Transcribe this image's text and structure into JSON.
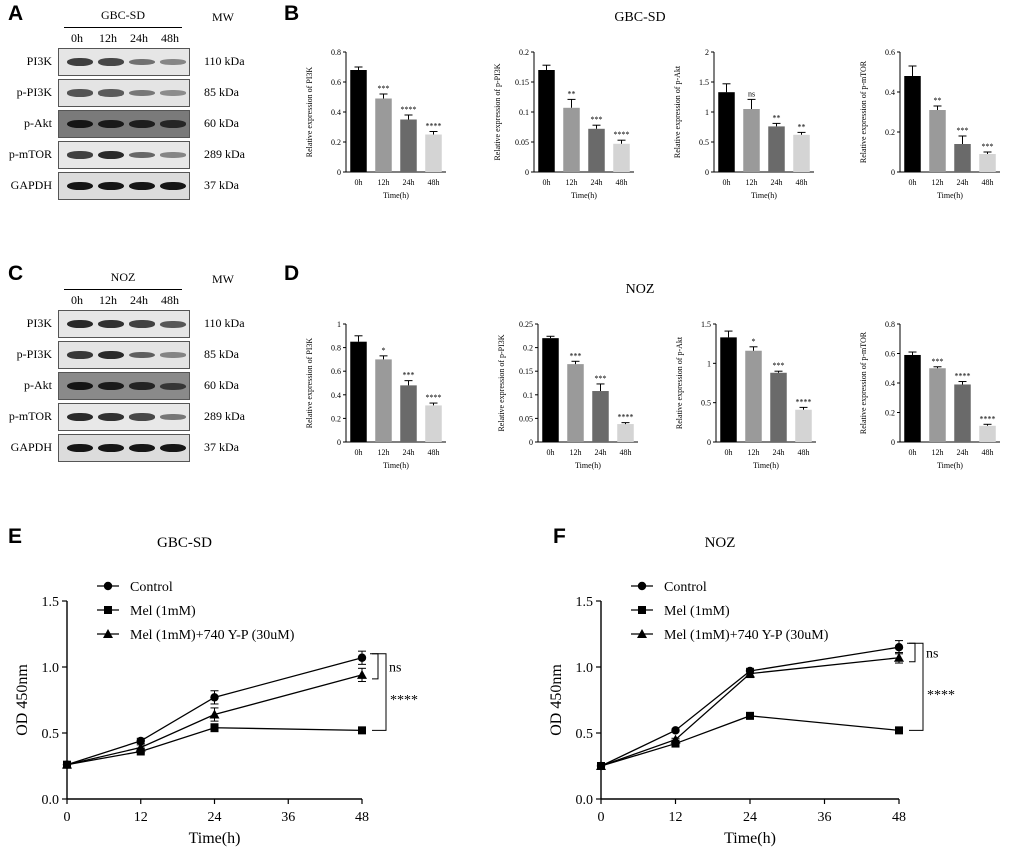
{
  "panel_labels": {
    "A": "A",
    "B": "B",
    "C": "C",
    "D": "D",
    "E": "E",
    "F": "F"
  },
  "western": [
    {
      "panel": "A",
      "cell_line": "GBC-SD",
      "mw_header": "MW",
      "times": [
        "0h",
        "12h",
        "24h",
        "48h"
      ],
      "rows": [
        {
          "protein": "PI3K",
          "mw": "110 kDa",
          "bg": "#e6e6e6",
          "band": "#2a2a2a",
          "intens": [
            0.85,
            0.8,
            0.5,
            0.35
          ]
        },
        {
          "protein": "p-PI3K",
          "mw": "85 kDa",
          "bg": "#e4e4e4",
          "band": "#2a2a2a",
          "intens": [
            0.7,
            0.65,
            0.45,
            0.3
          ]
        },
        {
          "protein": "p-Akt",
          "mw": "60 kDa",
          "bg": "#7a7a7a",
          "band": "#111111",
          "intens": [
            0.95,
            0.9,
            0.85,
            0.75
          ]
        },
        {
          "protein": "p-mTOR",
          "mw": "289 kDa",
          "bg": "#e8e8e8",
          "band": "#1a1a1a",
          "intens": [
            0.75,
            0.9,
            0.5,
            0.3
          ]
        },
        {
          "protein": "GAPDH",
          "mw": "37 kDa",
          "bg": "#dcdcdc",
          "band": "#0d0d0d",
          "intens": [
            0.95,
            0.95,
            0.95,
            0.95
          ]
        }
      ]
    },
    {
      "panel": "C",
      "cell_line": "NOZ",
      "mw_header": "MW",
      "times": [
        "0h",
        "12h",
        "24h",
        "48h"
      ],
      "rows": [
        {
          "protein": "PI3K",
          "mw": "110 kDa",
          "bg": "#e6e6e6",
          "band": "#1a1a1a",
          "intens": [
            0.9,
            0.85,
            0.75,
            0.6
          ]
        },
        {
          "protein": "p-PI3K",
          "mw": "85 kDa",
          "bg": "#e4e4e4",
          "band": "#1a1a1a",
          "intens": [
            0.8,
            0.9,
            0.55,
            0.3
          ]
        },
        {
          "protein": "p-Akt",
          "mw": "60 kDa",
          "bg": "#8a8a8a",
          "band": "#111111",
          "intens": [
            0.95,
            0.9,
            0.8,
            0.6
          ]
        },
        {
          "protein": "p-mTOR",
          "mw": "289 kDa",
          "bg": "#e8e8e8",
          "band": "#1a1a1a",
          "intens": [
            0.9,
            0.85,
            0.7,
            0.4
          ]
        },
        {
          "protein": "GAPDH",
          "mw": "37 kDa",
          "bg": "#dcdcdc",
          "band": "#0d0d0d",
          "intens": [
            0.95,
            0.95,
            0.95,
            0.95
          ]
        }
      ]
    }
  ],
  "bar_group_titles": {
    "B": "GBC-SD",
    "D": "NOZ"
  },
  "bar_colors": [
    "#000000",
    "#9a9a9a",
    "#6a6a6a",
    "#d4d4d4"
  ],
  "chart_data": [
    {
      "id": "B1",
      "panel": "B",
      "type": "bar",
      "categories": [
        "0h",
        "12h",
        "24h",
        "48h"
      ],
      "values": [
        0.68,
        0.49,
        0.35,
        0.25
      ],
      "errors": [
        0.02,
        0.03,
        0.03,
        0.02
      ],
      "sig": [
        "",
        "***",
        "****",
        "****"
      ],
      "ylim": [
        0,
        0.8
      ],
      "ticks": [
        0,
        0.2,
        0.4,
        0.6,
        0.8
      ],
      "ylabel": "Relative expression of PI3K",
      "xlabel": "Time(h)"
    },
    {
      "id": "B2",
      "panel": "B",
      "type": "bar",
      "categories": [
        "0h",
        "12h",
        "24h",
        "48h"
      ],
      "values": [
        0.17,
        0.107,
        0.072,
        0.047
      ],
      "errors": [
        0.008,
        0.014,
        0.006,
        0.006
      ],
      "sig": [
        "",
        "**",
        "***",
        "****"
      ],
      "ylim": [
        0,
        0.2
      ],
      "ticks": [
        0,
        0.05,
        0.1,
        0.15,
        0.2
      ],
      "ylabel": "Relative expression of p-PI3K",
      "xlabel": "Time(h)"
    },
    {
      "id": "B3",
      "panel": "B",
      "type": "bar",
      "categories": [
        "0h",
        "12h",
        "24h",
        "48h"
      ],
      "values": [
        1.33,
        1.05,
        0.76,
        0.62
      ],
      "errors": [
        0.14,
        0.16,
        0.05,
        0.04
      ],
      "sig": [
        "",
        "ns",
        "**",
        "**"
      ],
      "ylim": [
        0,
        2.0
      ],
      "ticks": [
        0,
        0.5,
        1.0,
        1.5,
        2.0
      ],
      "ylabel": "Relative expression of p-Akt",
      "xlabel": "Time(h)"
    },
    {
      "id": "B4",
      "panel": "B",
      "type": "bar",
      "categories": [
        "0h",
        "12h",
        "24h",
        "48h"
      ],
      "values": [
        0.48,
        0.31,
        0.14,
        0.09
      ],
      "errors": [
        0.05,
        0.02,
        0.04,
        0.01
      ],
      "sig": [
        "",
        "**",
        "***",
        "***"
      ],
      "ylim": [
        0,
        0.6
      ],
      "ticks": [
        0,
        0.2,
        0.4,
        0.6
      ],
      "ylabel": "Relative expression of p-mTOR",
      "xlabel": "Time(h)"
    },
    {
      "id": "D1",
      "panel": "D",
      "type": "bar",
      "categories": [
        "0h",
        "12h",
        "24h",
        "48h"
      ],
      "values": [
        0.85,
        0.7,
        0.48,
        0.31
      ],
      "errors": [
        0.05,
        0.03,
        0.04,
        0.02
      ],
      "sig": [
        "",
        "*",
        "***",
        "****"
      ],
      "ylim": [
        0,
        1.0
      ],
      "ticks": [
        0,
        0.2,
        0.4,
        0.6,
        0.8,
        1.0
      ],
      "ylabel": "Relative expression of PI3K",
      "xlabel": "Time(h)"
    },
    {
      "id": "D2",
      "panel": "D",
      "type": "bar",
      "categories": [
        "0h",
        "12h",
        "24h",
        "48h"
      ],
      "values": [
        0.22,
        0.165,
        0.108,
        0.038
      ],
      "errors": [
        0.004,
        0.006,
        0.015,
        0.003
      ],
      "sig": [
        "",
        "***",
        "***",
        "****"
      ],
      "ylim": [
        0,
        0.25
      ],
      "ticks": [
        0,
        0.05,
        0.1,
        0.15,
        0.2,
        0.25
      ],
      "ylabel": "Relative expression of p-PI3K",
      "xlabel": "Time(h)"
    },
    {
      "id": "D3",
      "panel": "D",
      "type": "bar",
      "categories": [
        "0h",
        "12h",
        "24h",
        "48h"
      ],
      "values": [
        1.33,
        1.16,
        0.88,
        0.41
      ],
      "errors": [
        0.08,
        0.05,
        0.02,
        0.03
      ],
      "sig": [
        "",
        "*",
        "***",
        "****"
      ],
      "ylim": [
        0,
        1.5
      ],
      "ticks": [
        0,
        0.5,
        1.0,
        1.5
      ],
      "ylabel": "Relative expression of p-Akt",
      "xlabel": "Time(h)"
    },
    {
      "id": "D4",
      "panel": "D",
      "type": "bar",
      "categories": [
        "0h",
        "12h",
        "24h",
        "48h"
      ],
      "values": [
        0.59,
        0.5,
        0.39,
        0.11
      ],
      "errors": [
        0.02,
        0.01,
        0.02,
        0.01
      ],
      "sig": [
        "",
        "***",
        "****",
        "****"
      ],
      "ylim": [
        0,
        0.8
      ],
      "ticks": [
        0,
        0.2,
        0.4,
        0.6,
        0.8
      ],
      "ylabel": "Relative expression of p-mTOR",
      "xlabel": "Time(h)"
    },
    {
      "id": "E",
      "panel": "E",
      "type": "line",
      "title": "GBC-SD",
      "xlabel": "Time(h)",
      "ylabel": "OD 450nm",
      "x": [
        0,
        12,
        24,
        48
      ],
      "xticks": [
        0,
        12,
        24,
        36,
        48
      ],
      "xlim": [
        0,
        48
      ],
      "ylim": [
        0,
        1.5
      ],
      "yticks": [
        "0.0",
        "0.5",
        "1.0",
        "1.5"
      ],
      "series": [
        {
          "name": "Control",
          "marker": "circle",
          "values": [
            0.26,
            0.44,
            0.77,
            1.07
          ],
          "errors": [
            0,
            0.02,
            0.05,
            0.05
          ]
        },
        {
          "name": "Mel (1mM)",
          "marker": "square",
          "values": [
            0.26,
            0.36,
            0.54,
            0.52
          ],
          "errors": [
            0,
            0.01,
            0.03,
            0.01
          ]
        },
        {
          "name": "Mel (1mM)+740 Y-P (30uM)",
          "marker": "triangle",
          "values": [
            0.26,
            0.39,
            0.64,
            0.94
          ],
          "errors": [
            0,
            0.02,
            0.05,
            0.05
          ]
        }
      ],
      "annotations": [
        "ns",
        "****"
      ]
    },
    {
      "id": "F",
      "panel": "F",
      "type": "line",
      "title": "NOZ",
      "xlabel": "Time(h)",
      "ylabel": "OD 450nm",
      "x": [
        0,
        12,
        24,
        48
      ],
      "xticks": [
        0,
        12,
        24,
        36,
        48
      ],
      "xlim": [
        0,
        48
      ],
      "ylim": [
        0,
        1.5
      ],
      "yticks": [
        "0.0",
        "0.5",
        "1.0",
        "1.5"
      ],
      "series": [
        {
          "name": "Control",
          "marker": "circle",
          "values": [
            0.25,
            0.52,
            0.97,
            1.15
          ],
          "errors": [
            0,
            0.01,
            0.02,
            0.05
          ]
        },
        {
          "name": "Mel (1mM)",
          "marker": "square",
          "values": [
            0.25,
            0.42,
            0.63,
            0.52
          ],
          "errors": [
            0,
            0.01,
            0.01,
            0.01
          ]
        },
        {
          "name": "Mel (1mM)+740 Y-P (30uM)",
          "marker": "triangle",
          "values": [
            0.25,
            0.45,
            0.95,
            1.07
          ],
          "errors": [
            0,
            0.01,
            0.03,
            0.04
          ]
        }
      ],
      "annotations": [
        "ns",
        "****"
      ]
    }
  ]
}
